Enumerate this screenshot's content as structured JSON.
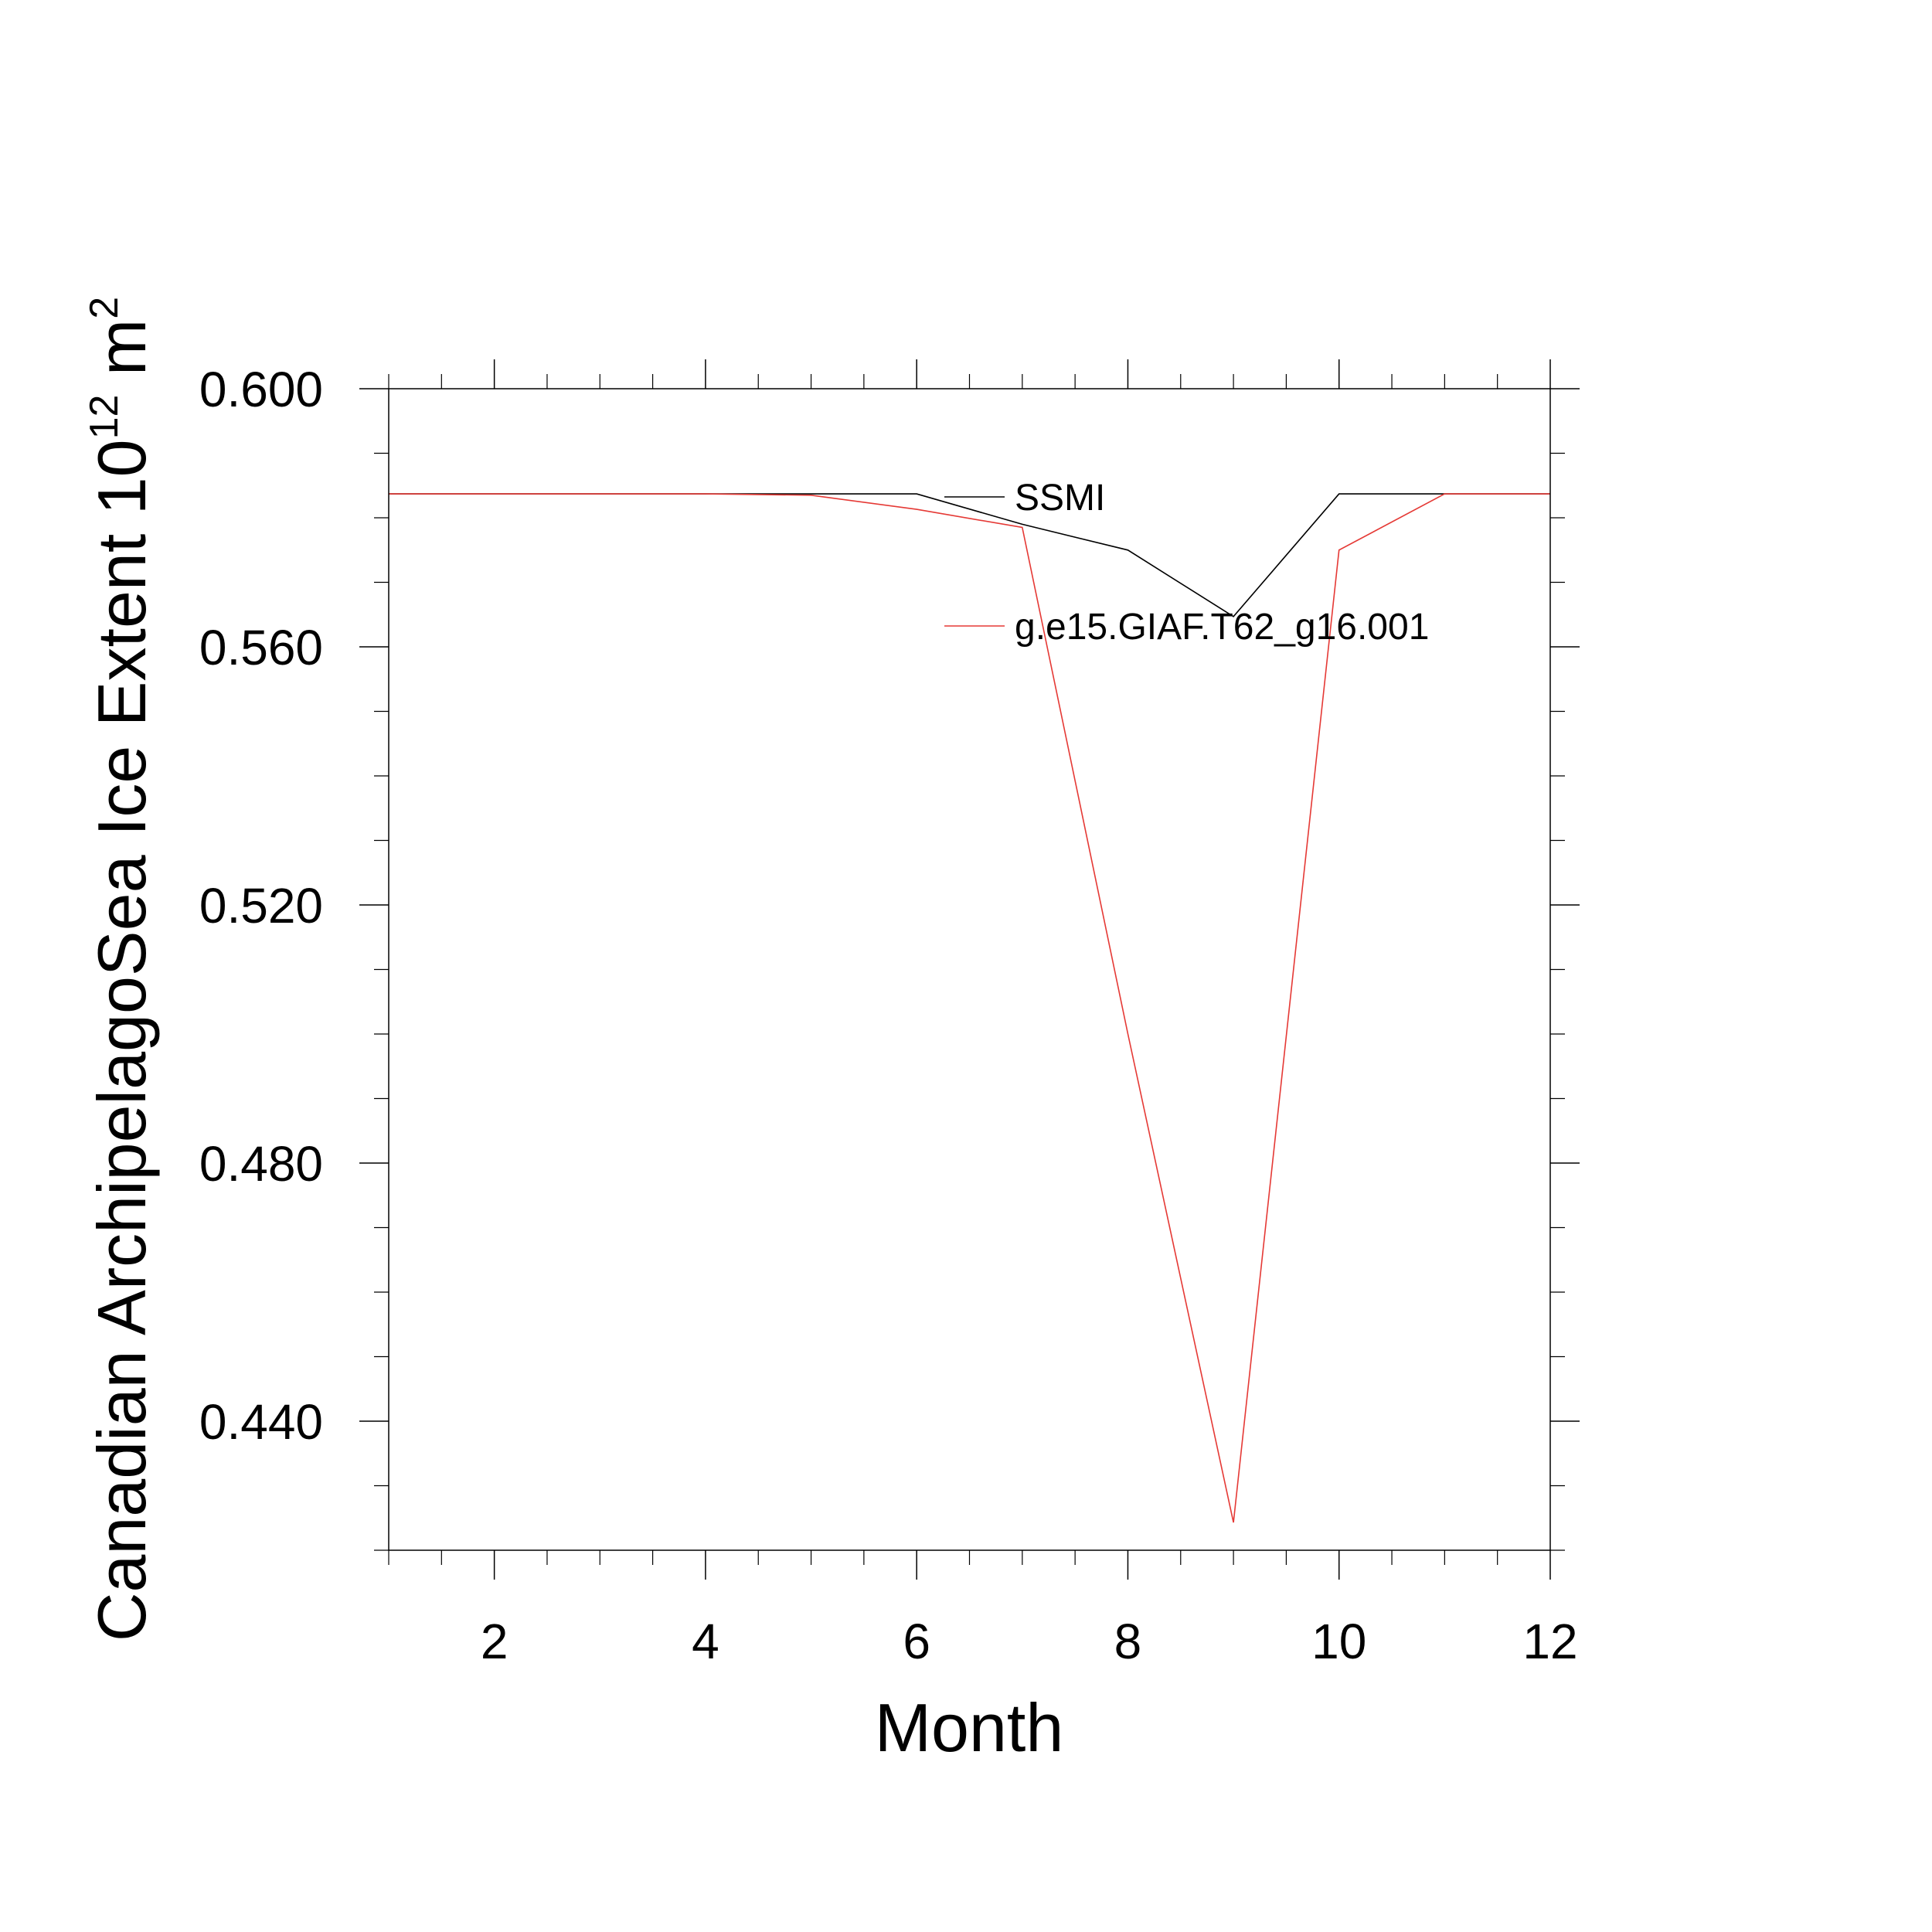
{
  "chart_data": {
    "type": "line",
    "xlabel": "Month",
    "ylabel": {
      "main": "Canadian ArchipelagoSea Ice Extent 10",
      "exponent": "12",
      "unit": " m",
      "unit_exponent": "2"
    },
    "xlim": [
      1,
      12
    ],
    "ylim": [
      0.42,
      0.6
    ],
    "x_ticks": [
      2,
      4,
      6,
      8,
      10,
      12
    ],
    "x_tick_labels": [
      "2",
      "4",
      "6",
      "8",
      "10",
      "12"
    ],
    "y_ticks": [
      0.44,
      0.48,
      0.52,
      0.56,
      0.6
    ],
    "y_tick_labels": [
      "0.440",
      "0.480",
      "0.520",
      "0.560",
      "0.600"
    ],
    "grid": false,
    "legend_position": "top-right",
    "x": [
      1,
      2,
      3,
      4,
      5,
      6,
      7,
      8,
      9,
      10,
      11,
      12
    ],
    "series": [
      {
        "name": "SSMI",
        "color": "#000000",
        "values": [
          0.5837,
          0.5837,
          0.5837,
          0.5837,
          0.5837,
          0.5837,
          0.579,
          0.575,
          0.5647,
          0.5837,
          0.5837,
          0.5837
        ]
      },
      {
        "name": "g.e15.GIAF.T62_g16.001",
        "color": "#e53935",
        "values": [
          0.5837,
          0.5837,
          0.5837,
          0.5837,
          0.5835,
          0.5813,
          0.5785,
          0.5,
          0.4243,
          0.575,
          0.5837,
          0.5837
        ]
      }
    ]
  }
}
